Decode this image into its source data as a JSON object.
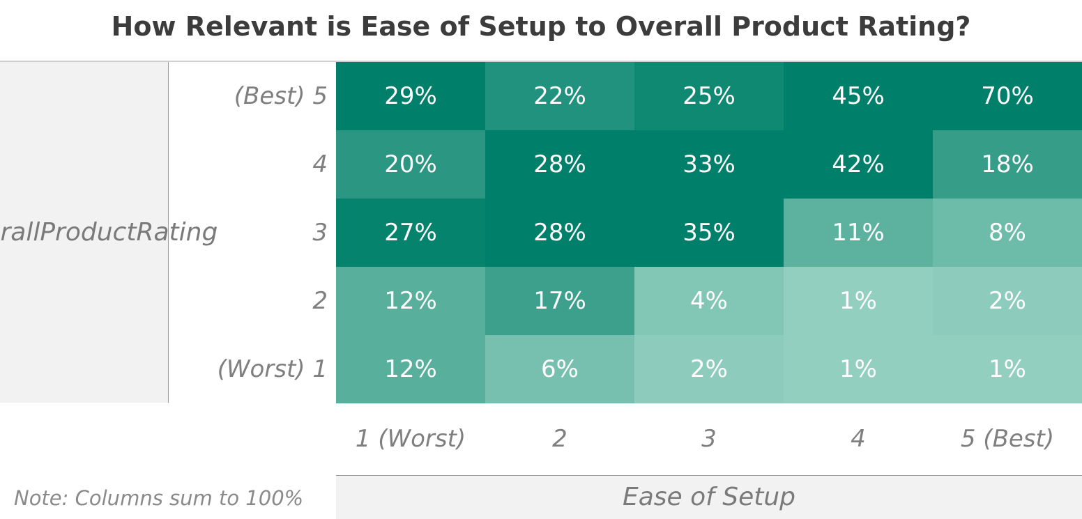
{
  "chart_data": {
    "type": "heatmap",
    "title": "How Relevant is Ease of Setup to Overall Product Rating?",
    "ylabel": "Overall Product Rating",
    "xlabel": "Ease of Setup",
    "x": [
      "1 (Worst)",
      "2",
      "3",
      "4",
      "5 (Best)"
    ],
    "y": [
      "(Best) 5",
      "4",
      "3",
      "2",
      "(Worst) 1"
    ],
    "values": [
      [
        29,
        22,
        25,
        45,
        70
      ],
      [
        20,
        28,
        33,
        42,
        18
      ],
      [
        27,
        28,
        35,
        11,
        8
      ],
      [
        12,
        17,
        4,
        1,
        2
      ],
      [
        12,
        6,
        2,
        1,
        1
      ]
    ],
    "value_suffix": "%",
    "note": "Note: Columns sum to 100%",
    "color_low": "#98d2c2",
    "color_high": "#00806a"
  }
}
